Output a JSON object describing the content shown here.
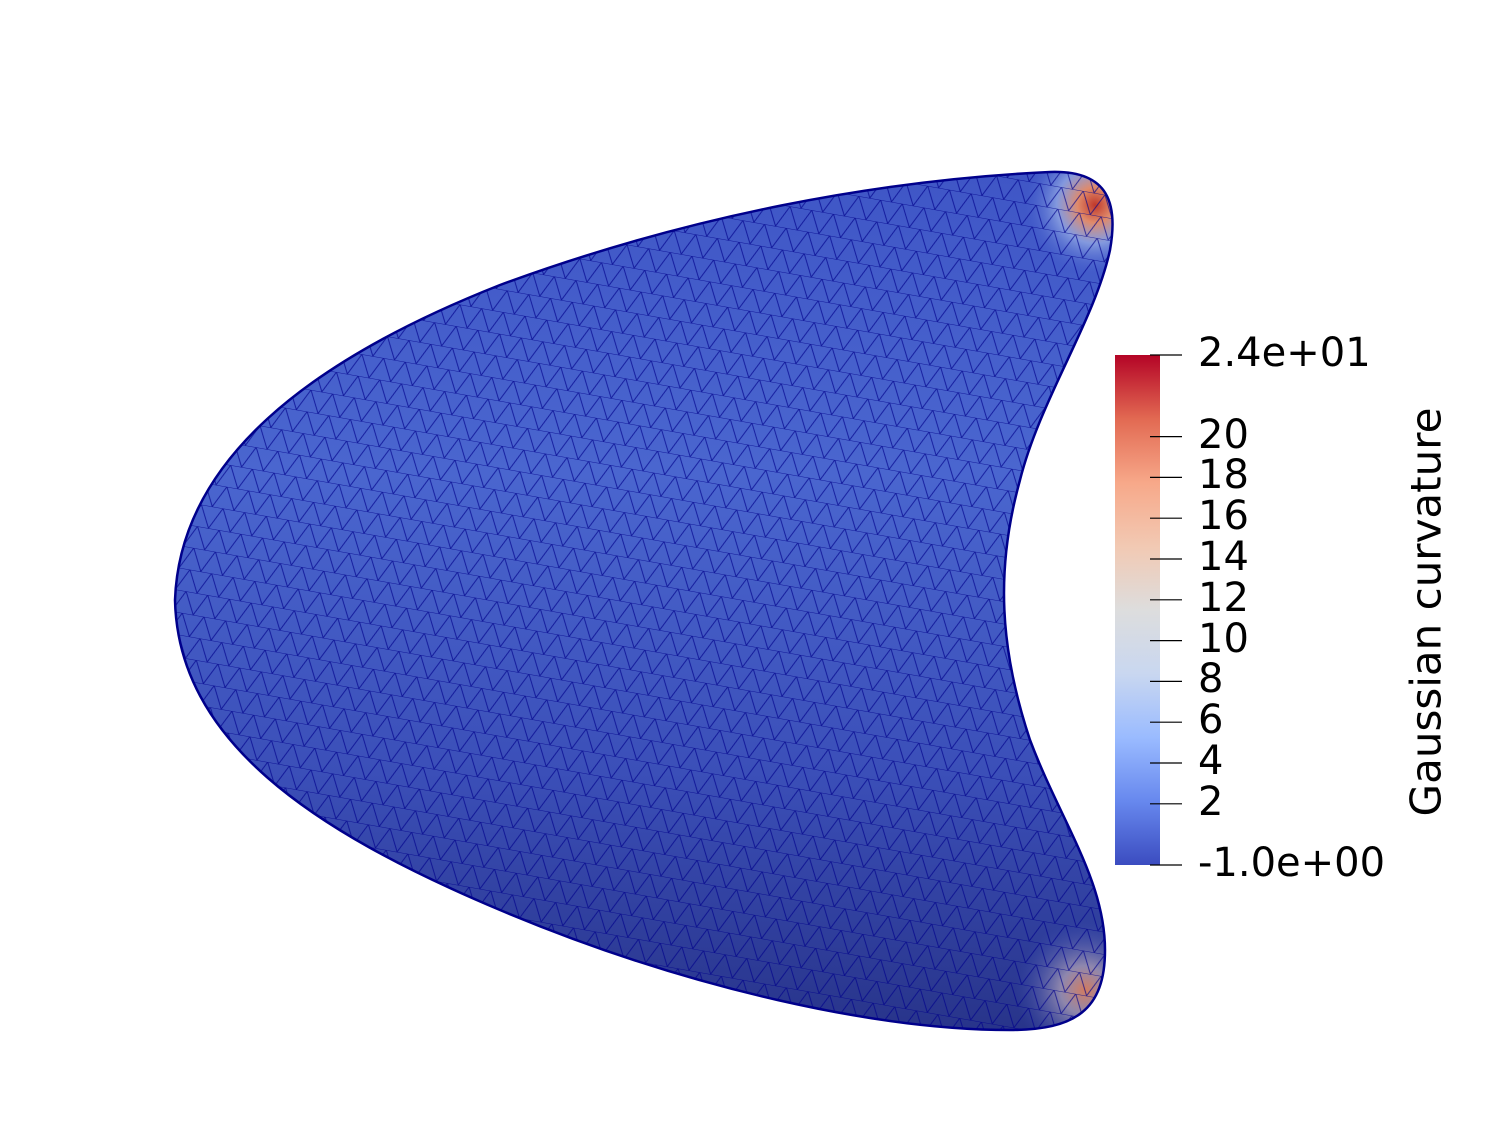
{
  "scene": {
    "object": "triangulated surface mesh",
    "surface_color": "#3b4cc0",
    "mesh_line_color": "#00008b",
    "hot_spot_color": "#b40426"
  },
  "colorbar": {
    "title": "Gaussian curvature",
    "min": -1.0,
    "max": 24.0,
    "min_label": "-1.0e+00",
    "max_label": "2.4e+01",
    "ticks": [
      {
        "value": 20,
        "label": "20"
      },
      {
        "value": 18,
        "label": "18"
      },
      {
        "value": 16,
        "label": "16"
      },
      {
        "value": 14,
        "label": "14"
      },
      {
        "value": 12,
        "label": "12"
      },
      {
        "value": 10,
        "label": "10"
      },
      {
        "value": 8,
        "label": "8"
      },
      {
        "value": 6,
        "label": "6"
      },
      {
        "value": 4,
        "label": "4"
      },
      {
        "value": 2,
        "label": "2"
      }
    ],
    "colormap": [
      "#3b4cc0",
      "#6788ee",
      "#9abbff",
      "#c9d7f0",
      "#dddddd",
      "#f2c9b3",
      "#f7a889",
      "#e26952",
      "#b40426"
    ]
  }
}
